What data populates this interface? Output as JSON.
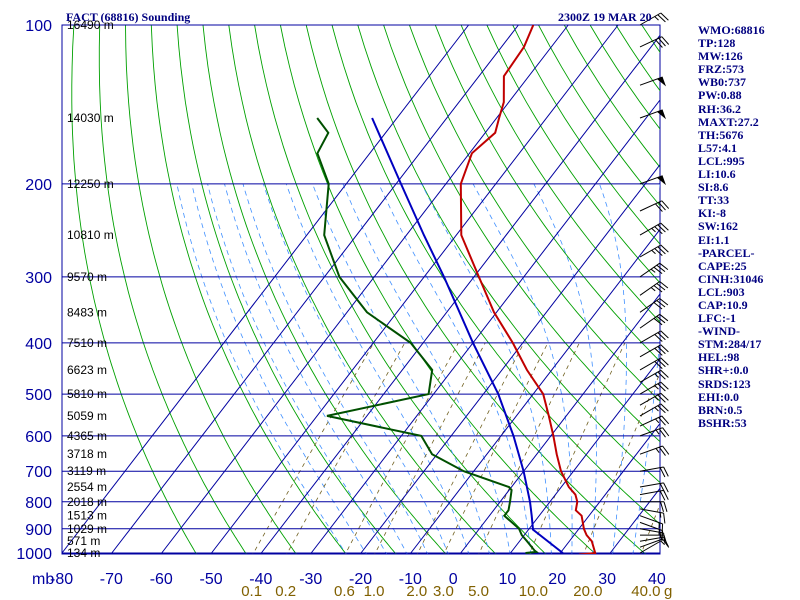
{
  "chart_data": {
    "type": "skew-t log-p sounding",
    "title": "FACT (68816) Sounding",
    "time": "2300Z 19 MAR 20",
    "pressure_unit_label": "mb",
    "pressure_levels": [
      100,
      200,
      300,
      400,
      500,
      600,
      700,
      800,
      900,
      1000
    ],
    "temperature_ticks": [
      -80,
      -70,
      -60,
      -50,
      -40,
      -30,
      -20,
      -10,
      0,
      10,
      20,
      30,
      40
    ],
    "temperature_tick_labels": [
      "-80",
      "-70",
      "-60",
      "-50",
      "-40",
      "-30",
      "-20",
      "-10",
      "0",
      "10",
      "20",
      "30",
      "40"
    ],
    "mixing_ratio_labels": [
      {
        "label": "0.1",
        "value": 0.1
      },
      {
        "label": "0.2",
        "value": 0.2
      },
      {
        "label": "0.6",
        "value": 0.6
      },
      {
        "label": "1.0",
        "value": 1.0
      },
      {
        "label": "2.0",
        "value": 2.0
      },
      {
        "label": "3.0",
        "value": 3.0
      },
      {
        "label": "5.0",
        "value": 5.0
      },
      {
        "label": "10.0",
        "value": 10.0
      },
      {
        "label": "20.0",
        "value": 20.0
      },
      {
        "label": "40.0",
        "value": 40.0
      }
    ],
    "mixing_ratio_unit": "g",
    "height_labels": [
      {
        "pressure": 100,
        "label": "16490 m"
      },
      {
        "pressure": 150,
        "label": "14030 m"
      },
      {
        "pressure": 200,
        "label": "12250 m"
      },
      {
        "pressure": 250,
        "label": "10810 m"
      },
      {
        "pressure": 300,
        "label": "9570 m"
      },
      {
        "pressure": 350,
        "label": "8483 m"
      },
      {
        "pressure": 400,
        "label": "7510 m"
      },
      {
        "pressure": 450,
        "label": "6623 m"
      },
      {
        "pressure": 500,
        "label": "5810 m"
      },
      {
        "pressure": 550,
        "label": "5059 m"
      },
      {
        "pressure": 600,
        "label": "4365 m"
      },
      {
        "pressure": 650,
        "label": "3718 m"
      },
      {
        "pressure": 700,
        "label": "3119 m"
      },
      {
        "pressure": 750,
        "label": "2554 m"
      },
      {
        "pressure": 800,
        "label": "2018 m"
      },
      {
        "pressure": 850,
        "label": "1513 m"
      },
      {
        "pressure": 900,
        "label": "1029 m"
      },
      {
        "pressure": 950,
        "label": "571 m"
      },
      {
        "pressure": 1000,
        "label": "134 m"
      }
    ],
    "series": [
      {
        "key": "temperature",
        "color": "#c00000",
        "points": [
          {
            "p": 1007,
            "t": 24.0
          },
          {
            "p": 1000,
            "t": 27.0
          },
          {
            "p": 950,
            "t": 24.5
          },
          {
            "p": 925,
            "t": 22.5
          },
          {
            "p": 900,
            "t": 21.0
          },
          {
            "p": 850,
            "t": 18.5
          },
          {
            "p": 830,
            "t": 16.5
          },
          {
            "p": 800,
            "t": 15.5
          },
          {
            "p": 775,
            "t": 14.0
          },
          {
            "p": 750,
            "t": 11.5
          },
          {
            "p": 700,
            "t": 7.5
          },
          {
            "p": 650,
            "t": 4.0
          },
          {
            "p": 600,
            "t": 0.5
          },
          {
            "p": 550,
            "t": -3.5
          },
          {
            "p": 500,
            "t": -8.0
          },
          {
            "p": 450,
            "t": -15.0
          },
          {
            "p": 400,
            "t": -22.0
          },
          {
            "p": 350,
            "t": -30.5
          },
          {
            "p": 300,
            "t": -39.0
          },
          {
            "p": 250,
            "t": -49.0
          },
          {
            "p": 200,
            "t": -57.0
          },
          {
            "p": 175,
            "t": -59.5
          },
          {
            "p": 160,
            "t": -58.0
          },
          {
            "p": 150,
            "t": -59.5
          },
          {
            "p": 140,
            "t": -61.0
          },
          {
            "p": 125,
            "t": -65.0
          },
          {
            "p": 110,
            "t": -65.5
          },
          {
            "p": 100,
            "t": -67.0
          }
        ]
      },
      {
        "key": "dewpoint",
        "color": "#005000",
        "points": [
          {
            "p": 1000,
            "t": 13.0
          },
          {
            "p": 995,
            "t": 15.0
          },
          {
            "p": 990,
            "t": 14.5
          },
          {
            "p": 950,
            "t": 11.5
          },
          {
            "p": 925,
            "t": 9.5
          },
          {
            "p": 900,
            "t": 8.0
          },
          {
            "p": 850,
            "t": 3.0
          },
          {
            "p": 830,
            "t": 3.0
          },
          {
            "p": 800,
            "t": 2.0
          },
          {
            "p": 760,
            "t": 0.5
          },
          {
            "p": 750,
            "t": -0.5
          },
          {
            "p": 700,
            "t": -12.0
          },
          {
            "p": 650,
            "t": -21.0
          },
          {
            "p": 600,
            "t": -26.0
          },
          {
            "p": 550,
            "t": -48.0
          },
          {
            "p": 500,
            "t": -31.0
          },
          {
            "p": 450,
            "t": -34.0
          },
          {
            "p": 400,
            "t": -42.5
          },
          {
            "p": 350,
            "t": -56.0
          },
          {
            "p": 300,
            "t": -67.0
          },
          {
            "p": 250,
            "t": -76.5
          },
          {
            "p": 200,
            "t": -83.5
          },
          {
            "p": 175,
            "t": -90.5
          },
          {
            "p": 160,
            "t": -91.5
          },
          {
            "p": 150,
            "t": -96.0
          }
        ]
      },
      {
        "key": "parcel",
        "color": "#0000c0",
        "points": [
          {
            "p": 1000,
            "t": 20.5
          },
          {
            "p": 903,
            "t": 10.9
          },
          {
            "p": 850,
            "t": 8.5
          },
          {
            "p": 800,
            "t": 6.0
          },
          {
            "p": 700,
            "t": 0.0
          },
          {
            "p": 600,
            "t": -7.5
          },
          {
            "p": 500,
            "t": -17.0
          },
          {
            "p": 400,
            "t": -30.0
          },
          {
            "p": 300,
            "t": -46.0
          },
          {
            "p": 250,
            "t": -56.5
          },
          {
            "p": 200,
            "t": -69.0
          },
          {
            "p": 150,
            "t": -85.0
          }
        ]
      }
    ],
    "wind_barbs": [
      {
        "p": 1000,
        "dir": 60,
        "spd": 5
      },
      {
        "p": 975,
        "dir": 70,
        "spd": 10
      },
      {
        "p": 950,
        "dir": 80,
        "spd": 10
      },
      {
        "p": 925,
        "dir": 90,
        "spd": 15
      },
      {
        "p": 900,
        "dir": 100,
        "spd": 15
      },
      {
        "p": 875,
        "dir": 110,
        "spd": 15
      },
      {
        "p": 850,
        "dir": 110,
        "spd": 15
      },
      {
        "p": 825,
        "dir": 100,
        "spd": 15
      },
      {
        "p": 800,
        "dir": 90,
        "spd": 20
      },
      {
        "p": 775,
        "dir": 80,
        "spd": 20
      },
      {
        "p": 750,
        "dir": 80,
        "spd": 20
      },
      {
        "p": 700,
        "dir": 80,
        "spd": 20
      },
      {
        "p": 650,
        "dir": 70,
        "spd": 25
      },
      {
        "p": 600,
        "dir": 70,
        "spd": 25
      },
      {
        "p": 575,
        "dir": 65,
        "spd": 25
      },
      {
        "p": 550,
        "dir": 60,
        "spd": 25
      },
      {
        "p": 525,
        "dir": 60,
        "spd": 25
      },
      {
        "p": 500,
        "dir": 60,
        "spd": 25
      },
      {
        "p": 475,
        "dir": 60,
        "spd": 25
      },
      {
        "p": 450,
        "dir": 60,
        "spd": 30
      },
      {
        "p": 425,
        "dir": 60,
        "spd": 30
      },
      {
        "p": 400,
        "dir": 60,
        "spd": 30
      },
      {
        "p": 375,
        "dir": 55,
        "spd": 30
      },
      {
        "p": 350,
        "dir": 55,
        "spd": 30
      },
      {
        "p": 325,
        "dir": 55,
        "spd": 35
      },
      {
        "p": 300,
        "dir": 55,
        "spd": 35
      },
      {
        "p": 275,
        "dir": 60,
        "spd": 35
      },
      {
        "p": 250,
        "dir": 60,
        "spd": 35
      },
      {
        "p": 225,
        "dir": 65,
        "spd": 30
      },
      {
        "p": 200,
        "dir": 70,
        "spd": 50
      },
      {
        "p": 150,
        "dir": 70,
        "spd": 50
      },
      {
        "p": 130,
        "dir": 70,
        "spd": 50
      },
      {
        "p": 110,
        "dir": 65,
        "spd": 30
      },
      {
        "p": 100,
        "dir": 60,
        "spd": 25
      }
    ],
    "indices": [
      "WMO:68816",
      "TP:128",
      "MW:126",
      "FRZ:573",
      "WB0:737",
      "PW:0.88",
      "RH:36.2",
      "MAXT:27.2",
      "TH:5676",
      "L57:4.1",
      "LCL:995",
      "LI:10.6",
      "SI:8.6",
      "TT:33",
      "KI:-8",
      "SW:162",
      "EI:1.1",
      "-PARCEL-",
      "CAPE:25",
      "CINH:31046",
      "LCL:903",
      "CAP:10.9",
      "LFC:-1",
      "-WIND-",
      "STM:284/17",
      "HEL:98",
      "SHR+:0.0",
      "SRDS:123",
      "EHI:0.0",
      "BRN:0.5",
      "BSHR:53"
    ]
  }
}
